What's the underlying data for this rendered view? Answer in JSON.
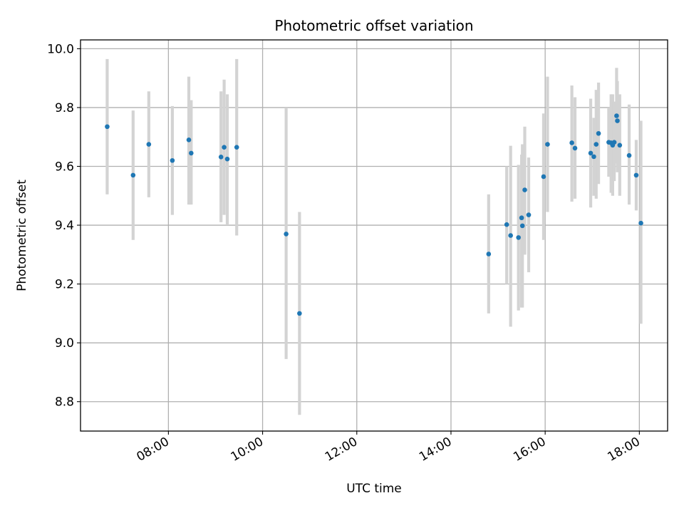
{
  "chart_data": {
    "type": "scatter",
    "title": "Photometric offset variation",
    "xlabel": "UTC time",
    "ylabel": "Photometric offset",
    "x_format": "HH:MM",
    "xlim": [
      "06:08",
      "18:36"
    ],
    "ylim": [
      8.7,
      10.03
    ],
    "x_ticks": [
      "08:00",
      "10:00",
      "12:00",
      "14:00",
      "16:00",
      "18:00"
    ],
    "y_ticks": [
      "8.8",
      "9.0",
      "9.2",
      "9.4",
      "9.6",
      "9.8",
      "10.0"
    ],
    "grid": true,
    "colors": {
      "points": "#1f77b4",
      "error_bars": "#d3d3d3",
      "grid": "#b0b0b0",
      "frame": "#000000"
    },
    "points": [
      {
        "x": "06:42",
        "y": 9.735,
        "y_low": 9.505,
        "y_high": 9.965
      },
      {
        "x": "07:15",
        "y": 9.57,
        "y_low": 9.35,
        "y_high": 9.79
      },
      {
        "x": "07:35",
        "y": 9.675,
        "y_low": 9.495,
        "y_high": 9.855
      },
      {
        "x": "08:05",
        "y": 9.62,
        "y_low": 9.435,
        "y_high": 9.805
      },
      {
        "x": "08:26",
        "y": 9.69,
        "y_low": 9.47,
        "y_high": 9.905
      },
      {
        "x": "08:29",
        "y": 9.645,
        "y_low": 9.47,
        "y_high": 9.825
      },
      {
        "x": "09:07",
        "y": 9.632,
        "y_low": 9.41,
        "y_high": 9.855
      },
      {
        "x": "09:11",
        "y": 9.665,
        "y_low": 9.435,
        "y_high": 9.895
      },
      {
        "x": "09:15",
        "y": 9.625,
        "y_low": 9.4,
        "y_high": 9.845
      },
      {
        "x": "09:27",
        "y": 9.665,
        "y_low": 9.365,
        "y_high": 9.965
      },
      {
        "x": "10:30",
        "y": 9.37,
        "y_low": 8.945,
        "y_high": 9.8
      },
      {
        "x": "10:47",
        "y": 9.1,
        "y_low": 8.755,
        "y_high": 9.445
      },
      {
        "x": "14:48",
        "y": 9.302,
        "y_low": 9.1,
        "y_high": 9.505
      },
      {
        "x": "15:11",
        "y": 9.402,
        "y_low": 9.2,
        "y_high": 9.6
      },
      {
        "x": "15:16",
        "y": 9.365,
        "y_low": 9.055,
        "y_high": 9.67
      },
      {
        "x": "15:26",
        "y": 9.358,
        "y_low": 9.11,
        "y_high": 9.605
      },
      {
        "x": "15:30",
        "y": 9.425,
        "y_low": 9.12,
        "y_high": 9.64
      },
      {
        "x": "15:31",
        "y": 9.398,
        "y_low": 9.12,
        "y_high": 9.675
      },
      {
        "x": "15:34",
        "y": 9.52,
        "y_low": 9.3,
        "y_high": 9.735
      },
      {
        "x": "15:39",
        "y": 9.435,
        "y_low": 9.24,
        "y_high": 9.63
      },
      {
        "x": "15:58",
        "y": 9.565,
        "y_low": 9.35,
        "y_high": 9.78
      },
      {
        "x": "16:03",
        "y": 9.675,
        "y_low": 9.445,
        "y_high": 9.905
      },
      {
        "x": "16:34",
        "y": 9.68,
        "y_low": 9.48,
        "y_high": 9.875
      },
      {
        "x": "16:38",
        "y": 9.662,
        "y_low": 9.49,
        "y_high": 9.835
      },
      {
        "x": "16:58",
        "y": 9.645,
        "y_low": 9.46,
        "y_high": 9.83
      },
      {
        "x": "17:02",
        "y": 9.633,
        "y_low": 9.5,
        "y_high": 9.765
      },
      {
        "x": "17:05",
        "y": 9.675,
        "y_low": 9.49,
        "y_high": 9.86
      },
      {
        "x": "17:08",
        "y": 9.712,
        "y_low": 9.54,
        "y_high": 9.885
      },
      {
        "x": "17:21",
        "y": 9.682,
        "y_low": 9.565,
        "y_high": 9.8
      },
      {
        "x": "17:24",
        "y": 9.68,
        "y_low": 9.51,
        "y_high": 9.845
      },
      {
        "x": "17:26",
        "y": 9.672,
        "y_low": 9.5,
        "y_high": 9.845
      },
      {
        "x": "17:28",
        "y": 9.682,
        "y_low": 9.55,
        "y_high": 9.82
      },
      {
        "x": "17:31",
        "y": 9.772,
        "y_low": 9.61,
        "y_high": 9.935
      },
      {
        "x": "17:32",
        "y": 9.755,
        "y_low": 9.58,
        "y_high": 9.89
      },
      {
        "x": "17:35",
        "y": 9.672,
        "y_low": 9.5,
        "y_high": 9.845
      },
      {
        "x": "17:47",
        "y": 9.637,
        "y_low": 9.47,
        "y_high": 9.81
      },
      {
        "x": "17:56",
        "y": 9.57,
        "y_low": 9.45,
        "y_high": 9.69
      },
      {
        "x": "18:02",
        "y": 9.407,
        "y_low": 9.065,
        "y_high": 9.755
      }
    ]
  }
}
